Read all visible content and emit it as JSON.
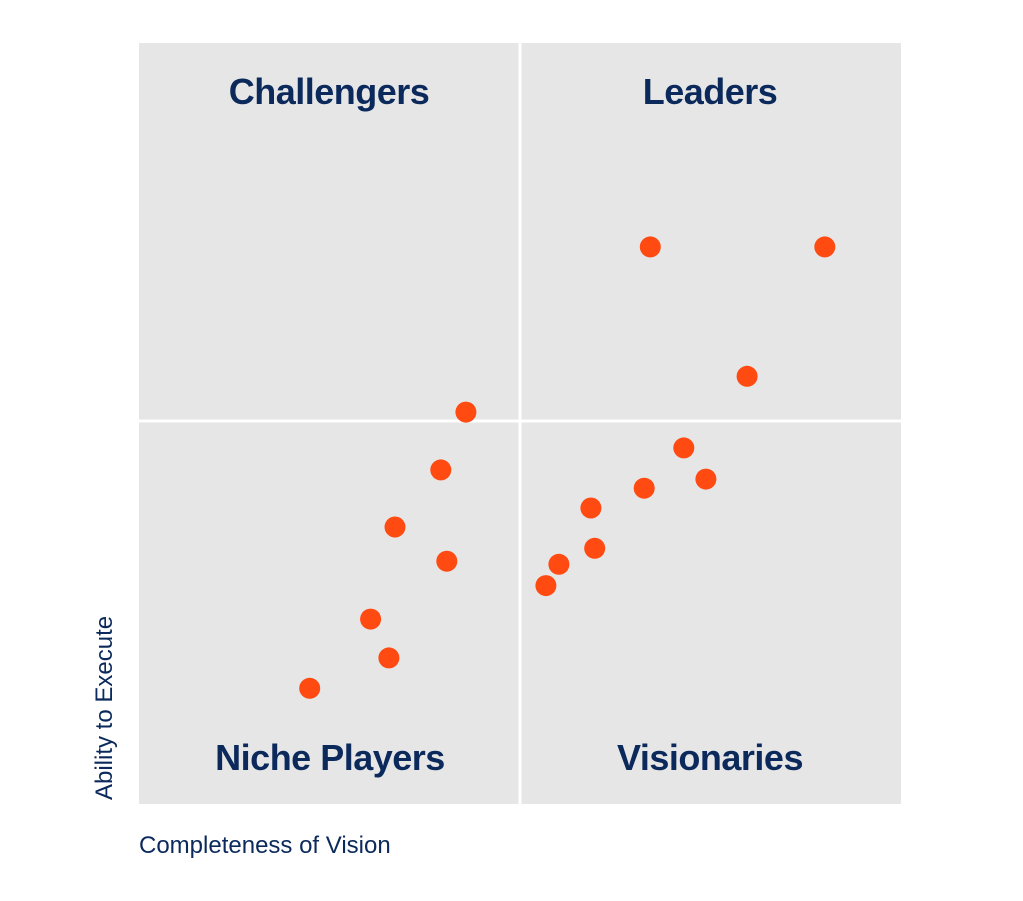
{
  "chart_data": {
    "type": "scatter",
    "title": "",
    "xlabel": "Completeness of Vision",
    "ylabel": "Ability to Execute",
    "xlim": [
      0,
      100
    ],
    "ylim": [
      0,
      100
    ],
    "grid": false,
    "quadrants": {
      "top_left": "Challengers",
      "top_right": "Leaders",
      "bottom_left": "Niche Players",
      "bottom_right": "Visionaries"
    },
    "colors": {
      "plot_background": "#e6e6e6",
      "divider": "#ffffff",
      "points": "#ff4a12",
      "text": "#0b2a5b"
    },
    "points": [
      {
        "x": 67.1,
        "y": 73.2
      },
      {
        "x": 90.0,
        "y": 73.2
      },
      {
        "x": 79.8,
        "y": 56.2
      },
      {
        "x": 42.9,
        "y": 51.5
      },
      {
        "x": 71.5,
        "y": 46.8
      },
      {
        "x": 39.6,
        "y": 43.9
      },
      {
        "x": 74.4,
        "y": 42.7
      },
      {
        "x": 66.3,
        "y": 41.5
      },
      {
        "x": 59.3,
        "y": 38.9
      },
      {
        "x": 33.6,
        "y": 36.4
      },
      {
        "x": 59.8,
        "y": 33.6
      },
      {
        "x": 40.4,
        "y": 31.9
      },
      {
        "x": 55.1,
        "y": 31.5
      },
      {
        "x": 53.4,
        "y": 28.7
      },
      {
        "x": 30.4,
        "y": 24.3
      },
      {
        "x": 32.8,
        "y": 19.2
      },
      {
        "x": 22.4,
        "y": 15.2
      }
    ]
  }
}
